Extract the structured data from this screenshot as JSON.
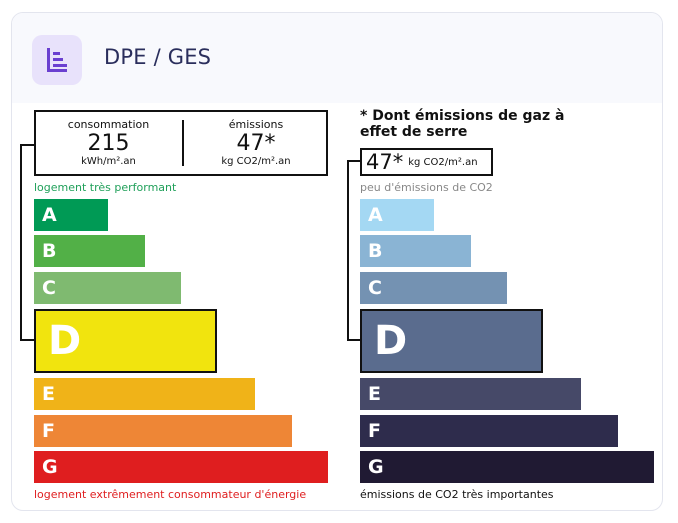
{
  "header": {
    "title": "DPE / GES",
    "icon": "chart-list-icon",
    "icon_color": "#6a3fd0",
    "icon_bg": "#e8e2fb"
  },
  "dpe": {
    "consumption_label": "consommation",
    "consumption_value": "215",
    "consumption_unit": "kWh/m².an",
    "emissions_label": "émissions",
    "emissions_value": "47*",
    "emissions_unit": "kg CO2/m².an",
    "top_caption": "logement très performant",
    "bottom_caption": "logement extrêmement consommateur d'énergie",
    "selected": "D",
    "classes": [
      {
        "letter": "A",
        "color": "#009a55"
      },
      {
        "letter": "B",
        "color": "#52b047"
      },
      {
        "letter": "C",
        "color": "#7fba70"
      },
      {
        "letter": "D",
        "color": "#f1e40e"
      },
      {
        "letter": "E",
        "color": "#f0b318"
      },
      {
        "letter": "F",
        "color": "#ee8636"
      },
      {
        "letter": "G",
        "color": "#df1e1f"
      }
    ],
    "top_caption_color": "#20a05a",
    "bottom_caption_color": "#df1e1f"
  },
  "ges": {
    "note": "* Dont émissions de gaz à effet de serre",
    "value": "47*",
    "unit": "kg CO2/m².an",
    "top_caption": "peu d'émissions de CO2",
    "bottom_caption": "émissions de CO2 très importantes",
    "selected": "D",
    "classes": [
      {
        "letter": "A",
        "color": "#a4d8f3"
      },
      {
        "letter": "B",
        "color": "#8ab4d4"
      },
      {
        "letter": "C",
        "color": "#7492b2"
      },
      {
        "letter": "D",
        "color": "#5a6c8e"
      },
      {
        "letter": "E",
        "color": "#464968"
      },
      {
        "letter": "F",
        "color": "#2e2c4c"
      },
      {
        "letter": "G",
        "color": "#201a33"
      }
    ],
    "top_caption_color": "#888888",
    "bottom_caption_color": "#111111"
  }
}
